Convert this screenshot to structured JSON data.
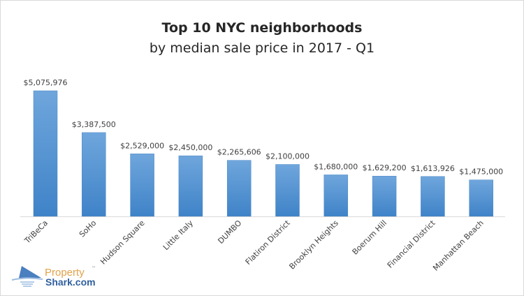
{
  "chart_data": {
    "type": "bar",
    "title": "Top 10 NYC neighborhoods",
    "subtitle": "by median sale price in 2017 - Q1",
    "categories": [
      "TriBeCa",
      "SoHo",
      "Hudson Square",
      "Little Italy",
      "DUMBO",
      "Flatiron District",
      "Brooklyn Heights",
      "Boerum Hill",
      "Financial District",
      "Manhattan Beach"
    ],
    "values": [
      5075976,
      3387500,
      2529000,
      2450000,
      2265606,
      2100000,
      1680000,
      1629200,
      1613926,
      1475000
    ],
    "data_labels": [
      "$5,075,976",
      "$3,387,500",
      "$2,529,000",
      "$2,450,000",
      "$2,265,606",
      "$2,100,000",
      "$1,680,000",
      "$1,629,200",
      "$1,613,926",
      "$1,475,000"
    ],
    "xlabel": "",
    "ylabel": "",
    "ylim": [
      0,
      5500000
    ],
    "grid": false,
    "legend": "none",
    "bar_color": "#5b9bd5"
  },
  "logo": {
    "line1": "Property",
    "line2": "Shark.com",
    "tm": "™",
    "color1": "#e3a24a",
    "color2": "#2f5f9e"
  }
}
